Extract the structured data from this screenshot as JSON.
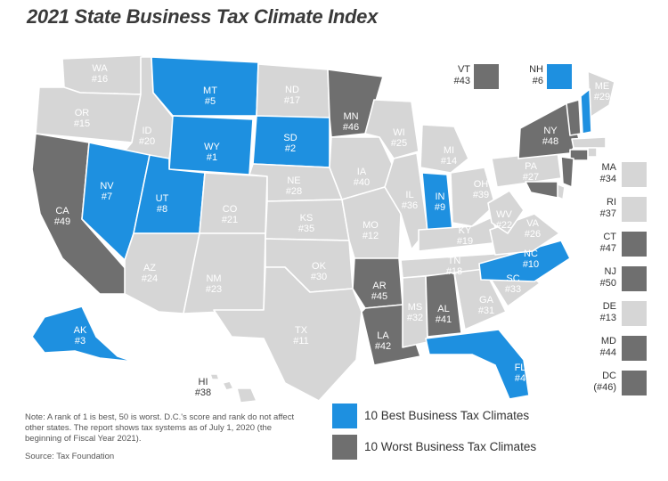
{
  "title": "2021 State Business Tax Climate Index",
  "colors": {
    "best": "#1e90e0",
    "worst": "#6f6f6f",
    "other": "#d6d6d6"
  },
  "states": [
    {
      "abbr": "WA",
      "rank": "#16",
      "cat": "other"
    },
    {
      "abbr": "OR",
      "rank": "#15",
      "cat": "other"
    },
    {
      "abbr": "CA",
      "rank": "#49",
      "cat": "worst"
    },
    {
      "abbr": "ID",
      "rank": "#20",
      "cat": "other"
    },
    {
      "abbr": "NV",
      "rank": "#7",
      "cat": "best"
    },
    {
      "abbr": "MT",
      "rank": "#5",
      "cat": "best"
    },
    {
      "abbr": "WY",
      "rank": "#1",
      "cat": "best"
    },
    {
      "abbr": "UT",
      "rank": "#8",
      "cat": "best"
    },
    {
      "abbr": "AZ",
      "rank": "#24",
      "cat": "other"
    },
    {
      "abbr": "CO",
      "rank": "#21",
      "cat": "other"
    },
    {
      "abbr": "NM",
      "rank": "#23",
      "cat": "other"
    },
    {
      "abbr": "ND",
      "rank": "#17",
      "cat": "other"
    },
    {
      "abbr": "SD",
      "rank": "#2",
      "cat": "best"
    },
    {
      "abbr": "NE",
      "rank": "#28",
      "cat": "other"
    },
    {
      "abbr": "KS",
      "rank": "#35",
      "cat": "other"
    },
    {
      "abbr": "OK",
      "rank": "#30",
      "cat": "other"
    },
    {
      "abbr": "TX",
      "rank": "#11",
      "cat": "other"
    },
    {
      "abbr": "MN",
      "rank": "#46",
      "cat": "worst"
    },
    {
      "abbr": "IA",
      "rank": "#40",
      "cat": "other"
    },
    {
      "abbr": "MO",
      "rank": "#12",
      "cat": "other"
    },
    {
      "abbr": "AR",
      "rank": "#45",
      "cat": "worst"
    },
    {
      "abbr": "LA",
      "rank": "#42",
      "cat": "worst"
    },
    {
      "abbr": "WI",
      "rank": "#25",
      "cat": "other"
    },
    {
      "abbr": "IL",
      "rank": "#36",
      "cat": "other"
    },
    {
      "abbr": "MI",
      "rank": "#14",
      "cat": "other"
    },
    {
      "abbr": "IN",
      "rank": "#9",
      "cat": "best"
    },
    {
      "abbr": "OH",
      "rank": "#39",
      "cat": "other"
    },
    {
      "abbr": "KY",
      "rank": "#19",
      "cat": "other"
    },
    {
      "abbr": "TN",
      "rank": "#18",
      "cat": "other"
    },
    {
      "abbr": "MS",
      "rank": "#32",
      "cat": "other"
    },
    {
      "abbr": "AL",
      "rank": "#41",
      "cat": "worst"
    },
    {
      "abbr": "GA",
      "rank": "#31",
      "cat": "other"
    },
    {
      "abbr": "FL",
      "rank": "#4",
      "cat": "best"
    },
    {
      "abbr": "SC",
      "rank": "#33",
      "cat": "other"
    },
    {
      "abbr": "NC",
      "rank": "#10",
      "cat": "best"
    },
    {
      "abbr": "VA",
      "rank": "#26",
      "cat": "other"
    },
    {
      "abbr": "WV",
      "rank": "#22",
      "cat": "other"
    },
    {
      "abbr": "PA",
      "rank": "#27",
      "cat": "other"
    },
    {
      "abbr": "NY",
      "rank": "#48",
      "cat": "worst"
    },
    {
      "abbr": "ME",
      "rank": "#29",
      "cat": "other"
    },
    {
      "abbr": "AK",
      "rank": "#3",
      "cat": "best"
    },
    {
      "abbr": "HI",
      "rank": "#38",
      "cat": "other"
    }
  ],
  "northeast": [
    {
      "abbr": "VT",
      "rank": "#43",
      "cat": "worst"
    },
    {
      "abbr": "NH",
      "rank": "#6",
      "cat": "best"
    }
  ],
  "sidebar": [
    {
      "abbr": "MA",
      "rank": "#34",
      "cat": "other"
    },
    {
      "abbr": "RI",
      "rank": "#37",
      "cat": "other"
    },
    {
      "abbr": "CT",
      "rank": "#47",
      "cat": "worst"
    },
    {
      "abbr": "NJ",
      "rank": "#50",
      "cat": "worst"
    },
    {
      "abbr": "DE",
      "rank": "#13",
      "cat": "other"
    },
    {
      "abbr": "MD",
      "rank": "#44",
      "cat": "worst"
    },
    {
      "abbr": "DC",
      "rank": "(#46)",
      "cat": "worst"
    }
  ],
  "legend": {
    "best_label": "10 Best Business Tax Climates",
    "worst_label": "10 Worst Business Tax Climates"
  },
  "note": "Note: A rank of 1 is best, 50 is worst. D.C.'s score and rank do not affect other states. The report shows tax systems as of July 1, 2020 (the beginning of Fiscal Year 2021).",
  "source": "Source: Tax Foundation"
}
